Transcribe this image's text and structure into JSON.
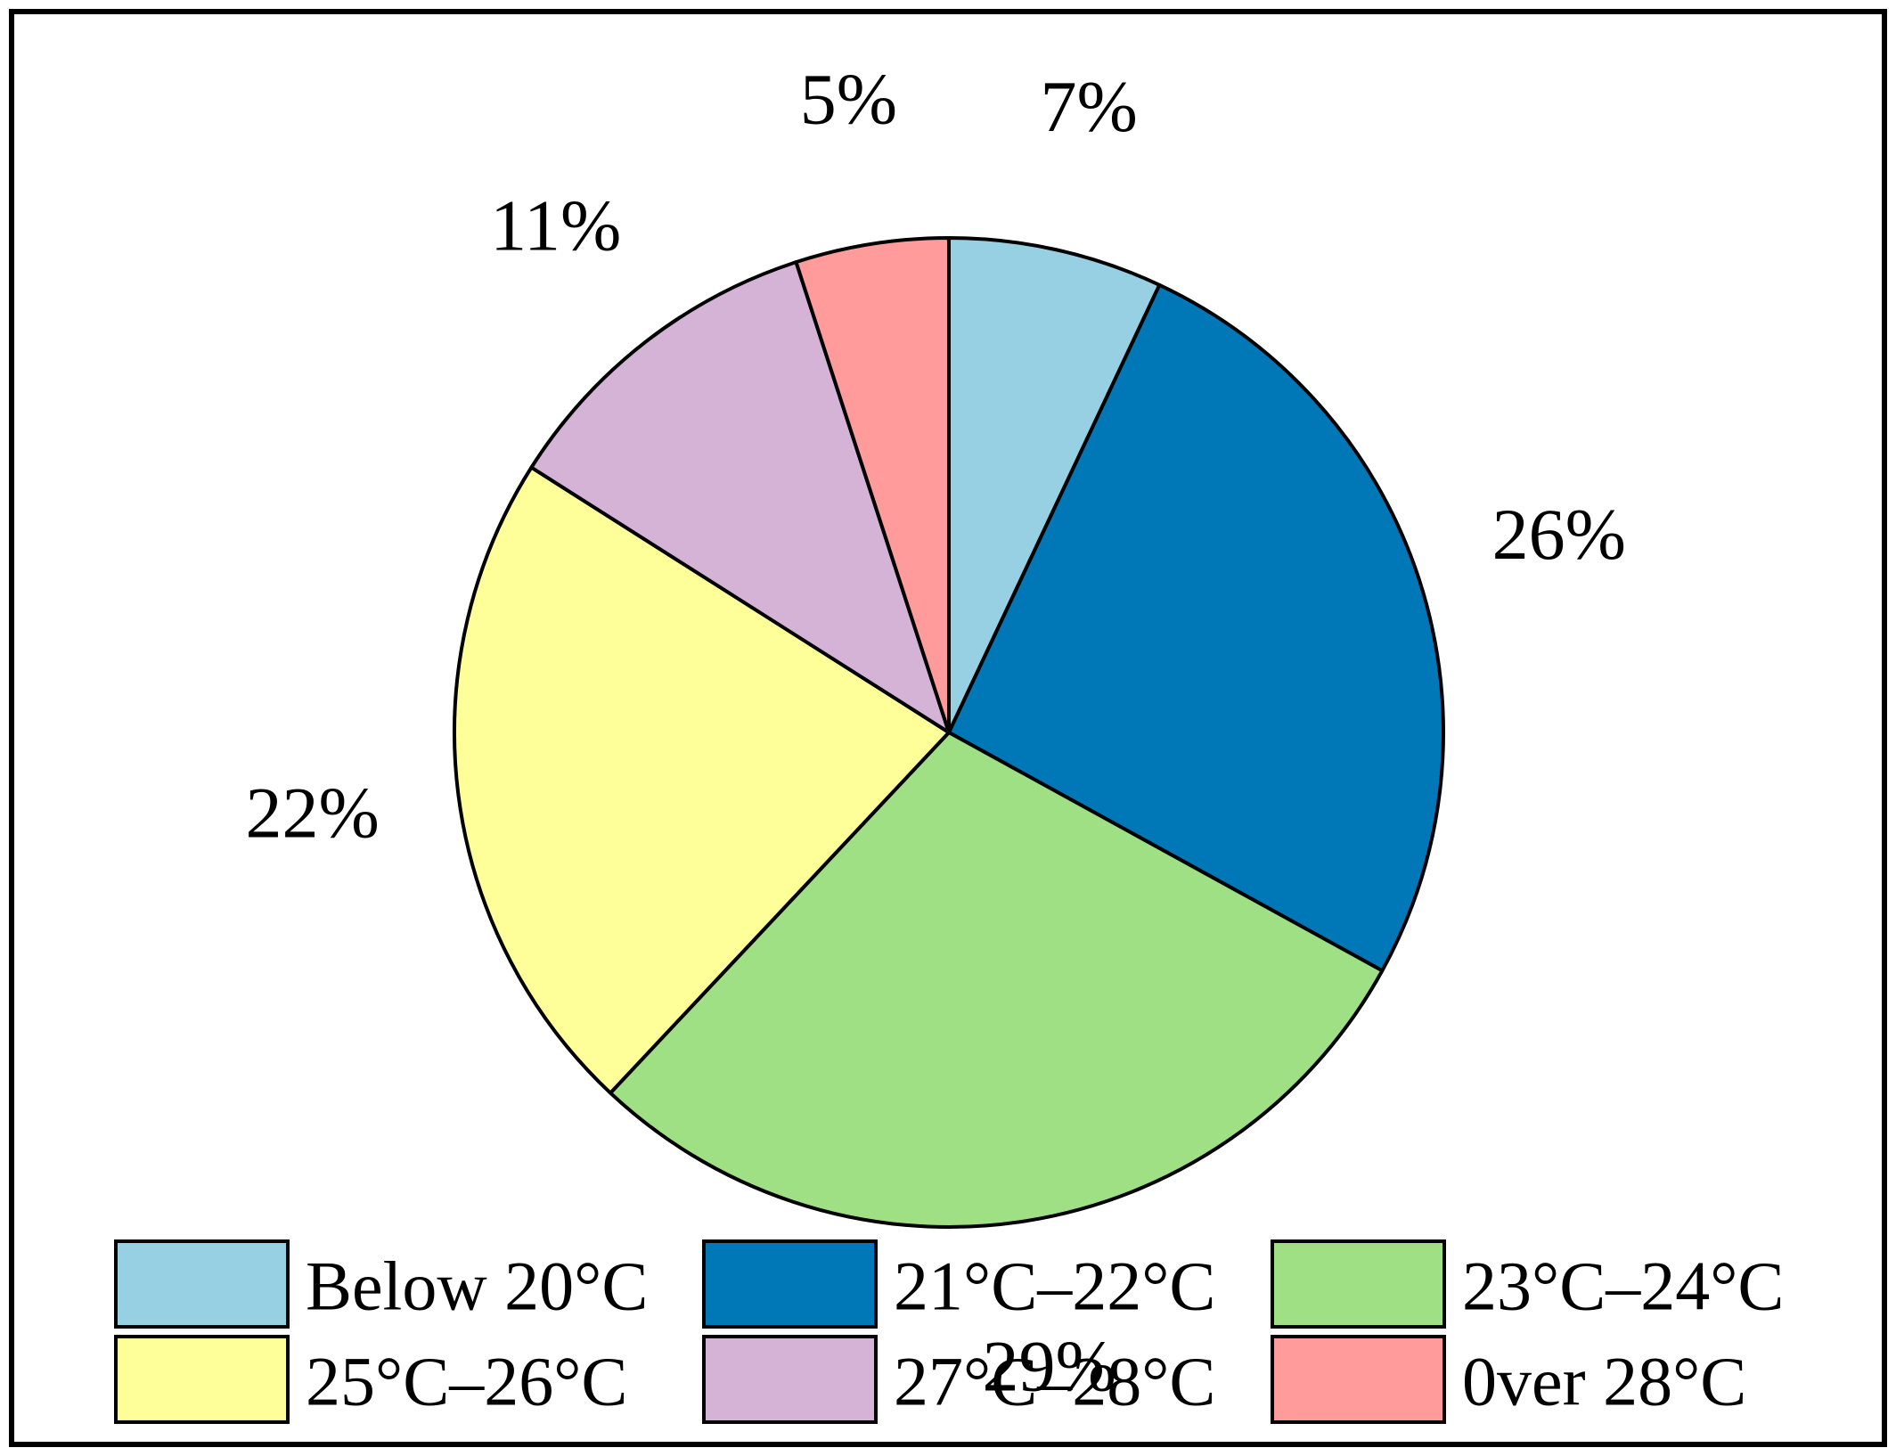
{
  "chart_data": {
    "type": "pie",
    "start_angle": "12 o'clock",
    "direction": "clockwise",
    "slices": [
      {
        "label": "Below 20°C",
        "value": 7,
        "display": "7%",
        "color": "#97CFE3"
      },
      {
        "label": "21°C–22°C",
        "value": 26,
        "display": "26%",
        "color": "#0077B6"
      },
      {
        "label": "23°C–24°C",
        "value": 29,
        "display": "29%",
        "color": "#A0E085"
      },
      {
        "label": "25°C–26°C",
        "value": 22,
        "display": "22%",
        "color": "#FFFF99"
      },
      {
        "label": "27°C–28°C",
        "value": 11,
        "display": "11%",
        "color": "#D5B3D7"
      },
      {
        "label": "0ver 28°C",
        "value": 5,
        "display": "5%",
        "color": "#FF9B9B"
      }
    ],
    "legend": {
      "position": "bottom",
      "columns": 3,
      "entries": [
        "Below 20°C",
        "21°C–22°C",
        "23°C–24°C",
        "25°C–26°C",
        "27°C–28°C",
        "0ver 28°C"
      ]
    },
    "frame": true
  }
}
